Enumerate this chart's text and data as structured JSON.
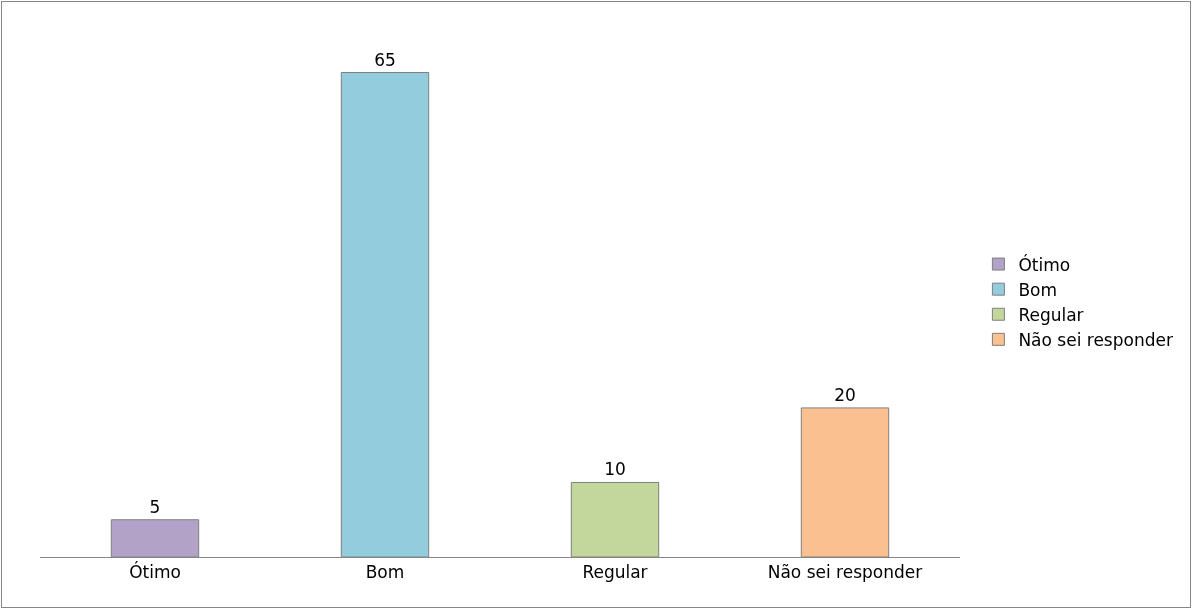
{
  "chart_data": {
    "type": "bar",
    "categories": [
      "Ótimo",
      "Bom",
      "Regular",
      "Não sei responder"
    ],
    "series": [
      {
        "name": "Ótimo",
        "color": "#b3a2c7",
        "values": [
          5,
          null,
          null,
          null
        ]
      },
      {
        "name": "Bom",
        "color": "#93cddd",
        "values": [
          null,
          65,
          null,
          null
        ]
      },
      {
        "name": "Regular",
        "color": "#c3d69b",
        "values": [
          null,
          null,
          10,
          null
        ]
      },
      {
        "name": "Não sei responder",
        "color": "#fac090",
        "values": [
          null,
          null,
          null,
          20
        ]
      }
    ],
    "data_labels": true,
    "legend": "right"
  }
}
